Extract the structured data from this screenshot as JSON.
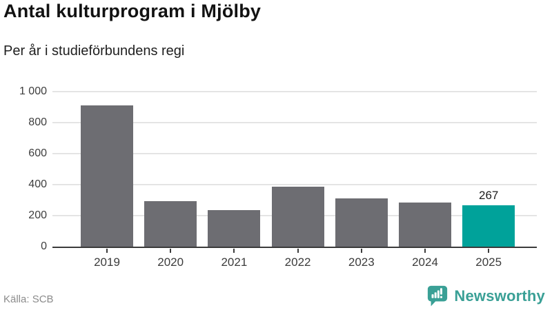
{
  "header": {
    "title": "Antal kulturprogram i Mjölby",
    "subtitle": "Per år i studieförbundens regi"
  },
  "chart_data": {
    "type": "bar",
    "categories": [
      "2019",
      "2020",
      "2021",
      "2022",
      "2023",
      "2024",
      "2025"
    ],
    "values": [
      910,
      293,
      235,
      385,
      310,
      284,
      267
    ],
    "highlight_index": 6,
    "highlight_value_label": "267",
    "title": "Antal kulturprogram i Mjölby",
    "subtitle": "Per år i studieförbundens regi",
    "xlabel": "",
    "ylabel": "",
    "ylim": [
      0,
      1000
    ],
    "yticks": [
      0,
      200,
      400,
      600,
      800,
      1000
    ],
    "ytick_labels": [
      "0",
      "200",
      "400",
      "600",
      "800",
      "1 000"
    ],
    "grid": true,
    "legend": "none",
    "bar_color": "#6d6d72",
    "highlight_color": "#00a29a"
  },
  "footer": {
    "source": "Källa: SCB",
    "brand": "Newsworthy",
    "brand_color": "#3aa096"
  }
}
